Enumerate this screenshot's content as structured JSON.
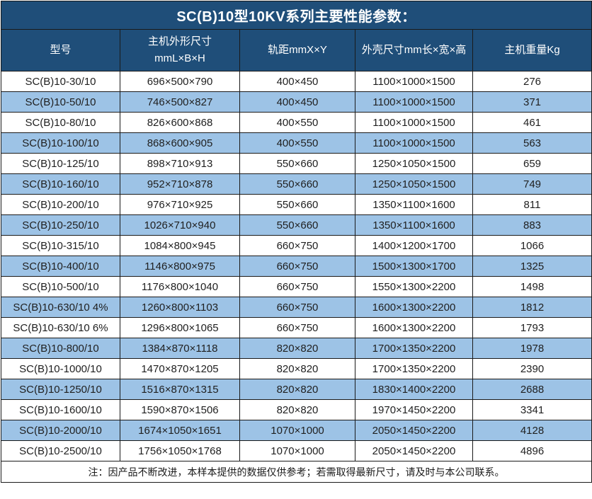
{
  "title": "SC(B)10型10KV系列主要性能参数：",
  "colors": {
    "header_bg": "#1F4E79",
    "header_text": "#FFFFFF",
    "row_bg": "#FFFFFF",
    "row_alt_bg": "#9DC3E6",
    "border": "#1A1A1A",
    "body_text": "#1F1F1F"
  },
  "table": {
    "columns": [
      {
        "label": "型号"
      },
      {
        "label": "主机外形尺寸",
        "label2": "mmL×B×H"
      },
      {
        "label": "轨距mmX×Y"
      },
      {
        "label": "外壳尺寸mm长×宽×高"
      },
      {
        "label": "主机重量Kg"
      }
    ],
    "rows": [
      [
        "SC(B)10-30/10",
        "696×500×790",
        "400×450",
        "1100×1000×1500",
        "276"
      ],
      [
        "SC(B)10-50/10",
        "746×500×827",
        "400×450",
        "1100×1000×1500",
        "371"
      ],
      [
        "SC(B)10-80/10",
        "826×600×868",
        "400×550",
        "1100×1000×1500",
        "461"
      ],
      [
        "SC(B)10-100/10",
        "868×600×905",
        "400×550",
        "1100×1000×1500",
        "563"
      ],
      [
        "SC(B)10-125/10",
        "898×710×913",
        "550×660",
        "1250×1050×1500",
        "659"
      ],
      [
        "SC(B)10-160/10",
        "952×710×878",
        "550×660",
        "1250×1050×1500",
        "749"
      ],
      [
        "SC(B)10-200/10",
        "976×710×925",
        "550×660",
        "1350×1100×1600",
        "811"
      ],
      [
        "SC(B)10-250/10",
        "1026×710×940",
        "550×660",
        "1350×1100×1600",
        "883"
      ],
      [
        "SC(B)10-315/10",
        "1084×800×945",
        "660×750",
        "1400×1200×1700",
        "1066"
      ],
      [
        "SC(B)10-400/10",
        "1146×800×975",
        "660×750",
        "1500×1300×1700",
        "1325"
      ],
      [
        "SC(B)10-500/10",
        "1176×800×1040",
        "660×750",
        "1550×1300×2200",
        "1498"
      ],
      [
        "SC(B)10-630/10 4%",
        "1260×800×1103",
        "660×750",
        "1600×1300×2200",
        "1812"
      ],
      [
        "SC(B)10-630/10 6%",
        "1296×800×1065",
        "660×750",
        "1600×1300×2200",
        "1793"
      ],
      [
        "SC(B)10-800/10",
        "1384×870×1118",
        "820×820",
        "1700×1350×2200",
        "1978"
      ],
      [
        "SC(B)10-1000/10",
        "1470×870×1205",
        "820×820",
        "1700×1350×2200",
        "2390"
      ],
      [
        "SC(B)10-1250/10",
        "1516×870×1315",
        "820×820",
        "1830×1400×2200",
        "2688"
      ],
      [
        "SC(B)10-1600/10",
        "1590×870×1506",
        "820×820",
        "1970×1450×2200",
        "3341"
      ],
      [
        "SC(B)10-2000/10",
        "1674×1050×1651",
        "1070×1000",
        "2050×1450×2200",
        "4128"
      ],
      [
        "SC(B)10-2500/10",
        "1756×1050×1768",
        "1070×1000",
        "2050×1450×2200",
        "4896"
      ]
    ]
  },
  "footnote": "注：因产品不断改进，本样本提供的数据仅供参考；若需取得最新尺寸，请及时与本公司联系。"
}
